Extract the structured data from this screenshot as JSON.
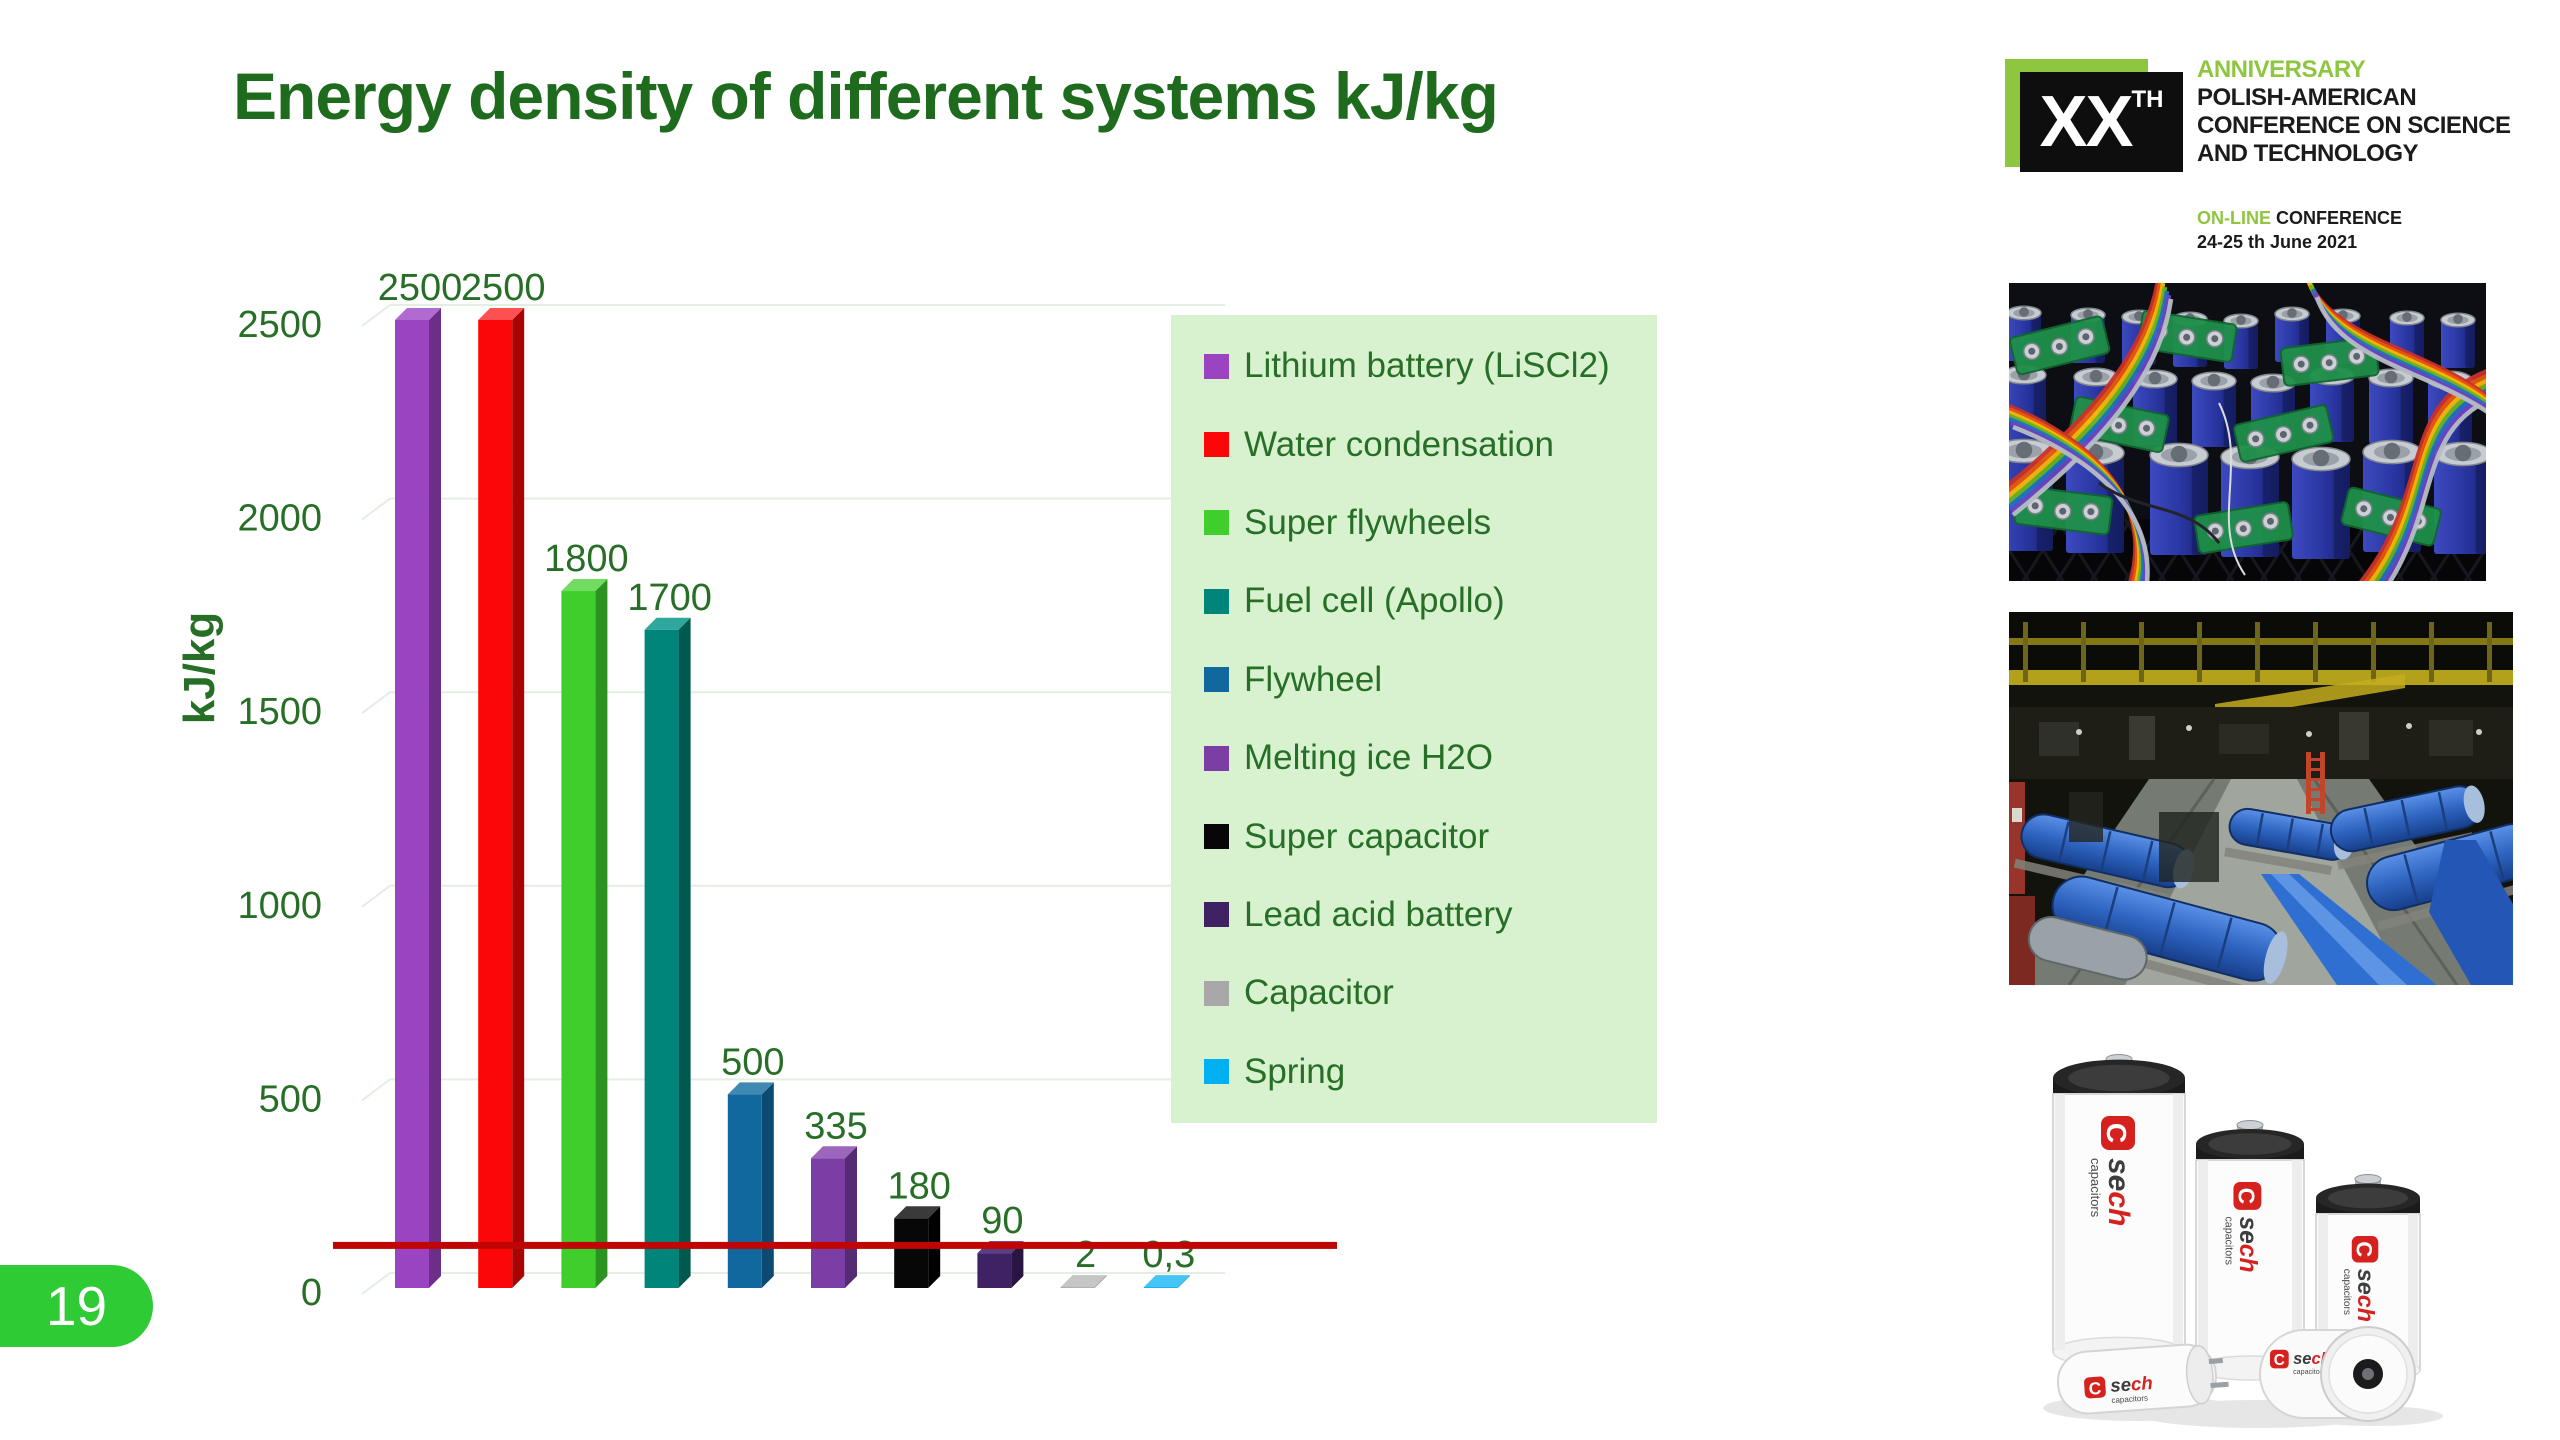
{
  "slide": {
    "title": "Energy density of different systems kJ/kg",
    "page_number": "19",
    "title_color": "#1e6b1e",
    "badge_color": "#2ecb35",
    "background": "#ffffff"
  },
  "chart_data": {
    "type": "bar",
    "title": "Energy density of different systems kJ/kg",
    "xlabel": "",
    "ylabel": "kJ/kg",
    "ylim": [
      0,
      2500
    ],
    "yticks": [
      0,
      500,
      1000,
      1500,
      2000,
      2500
    ],
    "ytick_labels": [
      "0",
      "500",
      "1000",
      "1500",
      "2000",
      "2500"
    ],
    "grid": true,
    "bar_style": "3d",
    "legend_position": "right-overlay",
    "axis_color": "#276f27",
    "legend_background": "#d8f2d0",
    "series": [
      {
        "name": "Lithium battery (LiSCl2)",
        "value": 2500,
        "label": "2500",
        "color": "#9a44c2",
        "side_color": "#6c2e89",
        "top_color": "#b06ad2"
      },
      {
        "name": "Water condensation",
        "value": 2500,
        "label": "2500",
        "color": "#fb0707",
        "side_color": "#a80404",
        "top_color": "#fd5050"
      },
      {
        "name": "Super flywheels",
        "value": 1800,
        "label": "1800",
        "color": "#40ce2c",
        "side_color": "#2d9320",
        "top_color": "#71dd60"
      },
      {
        "name": "Fuel cell (Apollo)",
        "value": 1700,
        "label": "1700",
        "color": "#00857b",
        "side_color": "#00594f",
        "top_color": "#2fa79c"
      },
      {
        "name": "Flywheel",
        "value": 500,
        "label": "500",
        "color": "#11689e",
        "side_color": "#0d4a72",
        "top_color": "#4089b3"
      },
      {
        "name": "Melting ice H2O",
        "value": 335,
        "label": "335",
        "color": "#7b3ea4",
        "side_color": "#552b73",
        "top_color": "#9c66bd"
      },
      {
        "name": "Super capacitor",
        "value": 180,
        "label": "180",
        "color": "#070707",
        "side_color": "#000000",
        "top_color": "#3a3a3a"
      },
      {
        "name": "Lead acid battery",
        "value": 90,
        "label": "90",
        "color": "#3e2263",
        "side_color": "#291542",
        "top_color": "#5b3e85"
      },
      {
        "name": "Capacitor",
        "value": 2,
        "label": "2",
        "color": "#a8a8a8",
        "side_color": "#7a7a7a",
        "top_color": "#c6c6c6"
      },
      {
        "name": "Spring",
        "value": 0.3,
        "label": "0,3",
        "color": "#00b0f0",
        "side_color": "#0081b3",
        "top_color": "#45c5f5"
      }
    ],
    "reference_line": {
      "value": 110,
      "color": "#c00505"
    }
  },
  "logo": {
    "xx": "XX",
    "th": "TH",
    "anniversary": "ANNIVERSARY",
    "name_line1": "POLISH-AMERICAN",
    "name_line2": "CONFERENCE ON SCIENCE",
    "name_line3": "AND TECHNOLOGY",
    "online": "ON-LINE",
    "conference": "CONFERENCE",
    "date": "24-25 th June 2021",
    "accent_green": "#8ec63f"
  },
  "photos": {
    "ultracapacitor_photo_alt": "bank of blue ultracapacitor cells with circuit boards and rainbow ribbon cables",
    "factory_photo_alt": "factory hall with rows of large blue cylindrical machines",
    "capacitors_photo_alt": "sech capacitors product photo",
    "logo_letter": "C",
    "brand_se": "se",
    "brand_ch": "ch",
    "brand_sub": "capacitors"
  }
}
